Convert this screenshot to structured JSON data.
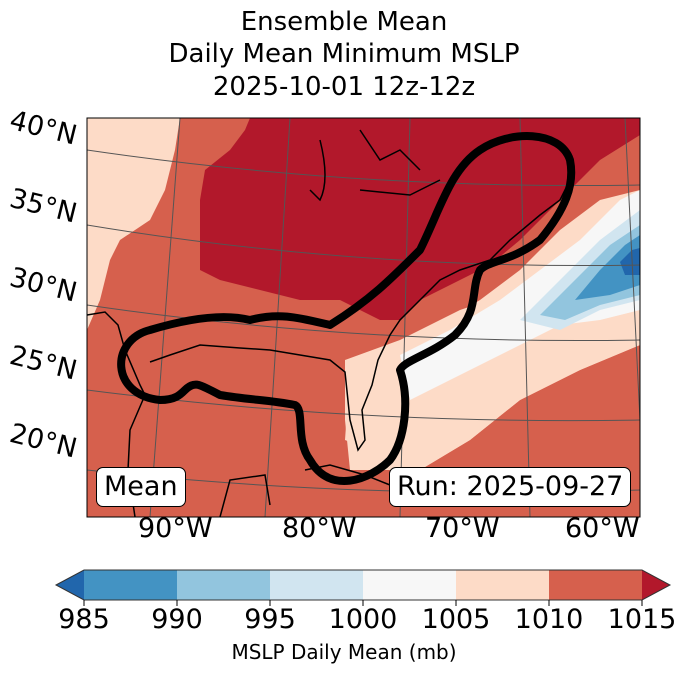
{
  "title": {
    "line1": "Ensemble Mean",
    "line2": "Daily Mean Minimum MSLP",
    "line3": "2025-10-01 12z-12z"
  },
  "map": {
    "lat_labels": [
      "40°N",
      "35°N",
      "30°N",
      "25°N",
      "20°N"
    ],
    "lon_labels": [
      "90°W",
      "80°W",
      "70°W",
      "60°W"
    ],
    "annotation_left": "Mean",
    "annotation_right": "Run: 2025-09-27",
    "colors": {
      "lt985": "#2166ac",
      "b985_990": "#4393c3",
      "b990_995": "#92c5de",
      "b995_1000": "#d1e5f0",
      "b1000_1005": "#f7f7f7",
      "b1005_1010": "#fddbc7",
      "b1010_1015": "#d6604d",
      "gt1015": "#b2182b"
    }
  },
  "colorbar": {
    "ticks": [
      "985",
      "990",
      "995",
      "1000",
      "1005",
      "1010",
      "1015"
    ],
    "label": "MSLP Daily Mean (mb)",
    "colors": [
      "#4393c3",
      "#92c5de",
      "#d1e5f0",
      "#f7f7f7",
      "#fddbc7",
      "#d6604d"
    ],
    "under_color": "#2166ac",
    "over_color": "#b2182b"
  }
}
